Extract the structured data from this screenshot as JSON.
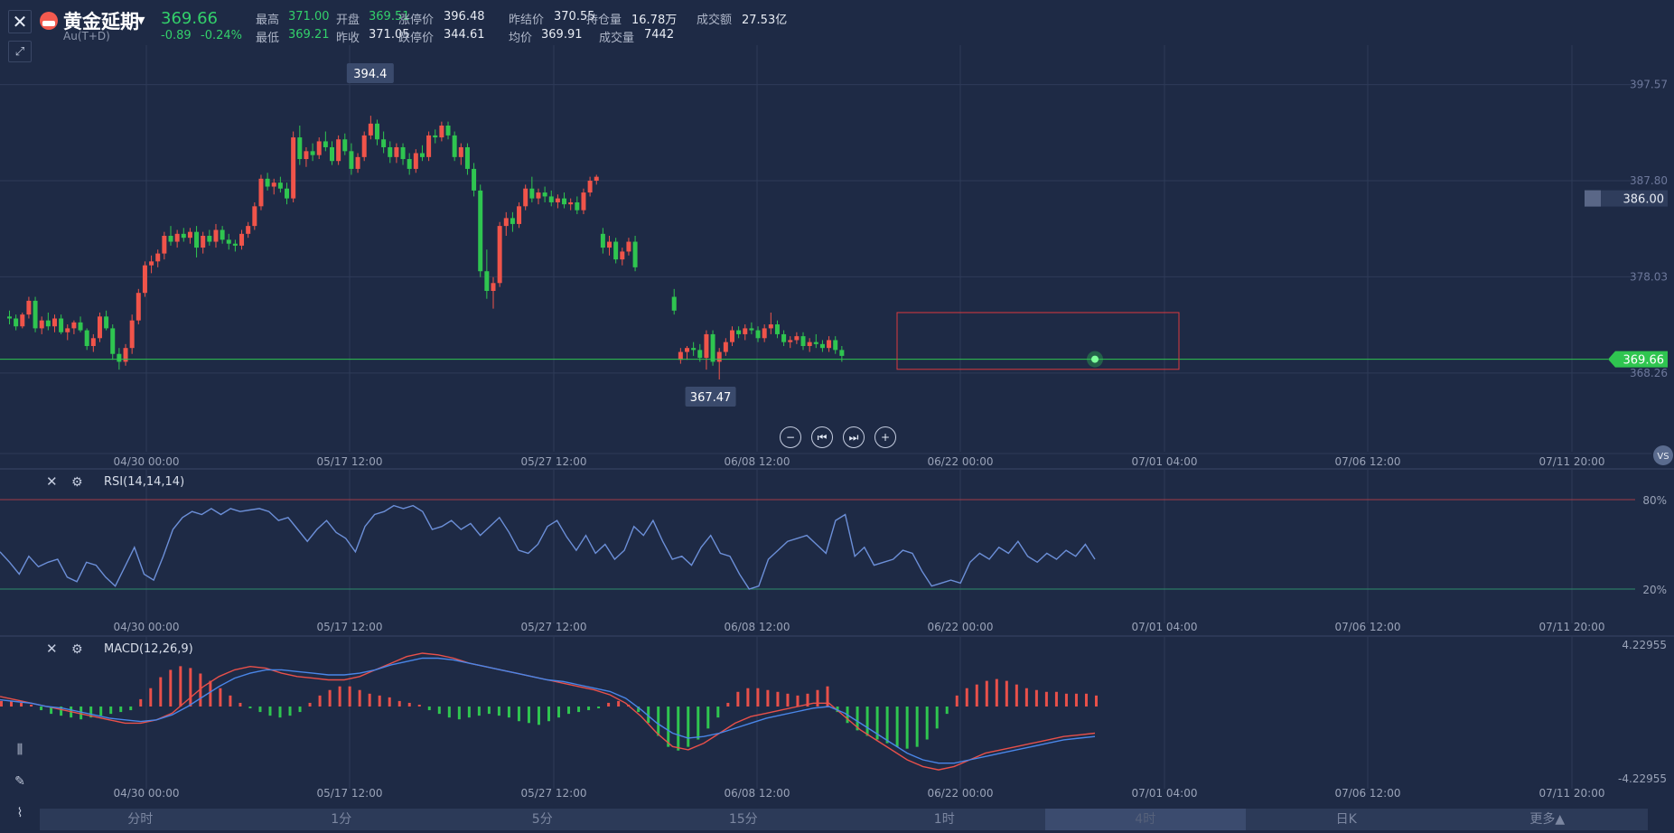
{
  "header": {
    "close_icon": "close-icon",
    "expand_icon": "expand-icon",
    "title": "黄金延期",
    "subtitle": "Au(T+D)",
    "price": "369.66",
    "change": "-0.89",
    "change_pct": "-0.24%",
    "quotes_row1": [
      {
        "label": "最高",
        "value": "371.00",
        "green": true
      },
      {
        "label": "开盘",
        "value": "369.51",
        "green": true
      },
      {
        "label": "涨停价",
        "value": "396.48",
        "green": false
      },
      {
        "label": "昨结价",
        "value": "370.55",
        "green": false
      },
      {
        "label": "持仓量",
        "value": "16.78万",
        "green": false
      },
      {
        "label": "成交额",
        "value": "27.53亿",
        "green": false
      }
    ],
    "quotes_row2": [
      {
        "label": "最低",
        "value": "369.21",
        "green": true
      },
      {
        "label": "昨收",
        "value": "371.05",
        "green": false
      },
      {
        "label": "跌停价",
        "value": "344.61",
        "green": false
      },
      {
        "label": "均价",
        "value": "369.91",
        "green": false
      },
      {
        "label": "成交量",
        "value": "7442",
        "green": false
      }
    ]
  },
  "main_chart": {
    "y_ticks": [
      "397.57",
      "387.80",
      "378.03",
      "368.26"
    ],
    "alert_price": "386.00",
    "last_price": "369.66",
    "high_label": "394.4",
    "low_label": "367.47",
    "x_ticks": [
      "04/30 00:00",
      "05/17 12:00",
      "05/27 12:00",
      "06/08 12:00",
      "06/22 00:00",
      "07/01 04:00",
      "07/06 12:00",
      "07/11 20:00"
    ],
    "vs_label": "VS",
    "colors": {
      "up": "#f0544a",
      "down": "#2fc550",
      "grid": "#2e3b58"
    }
  },
  "zoom_controls": [
    "zoom-out-icon",
    "skip-back-icon",
    "skip-forward-icon",
    "zoom-in-icon"
  ],
  "rsi": {
    "title": "RSI(14,14,14)",
    "levels": [
      "80%",
      "20%"
    ],
    "x_ticks": [
      "04/30 00:00",
      "05/17 12:00",
      "05/27 12:00",
      "06/08 12:00",
      "06/22 00:00",
      "07/01 04:00",
      "07/06 12:00",
      "07/11 20:00"
    ],
    "series": [
      45,
      38,
      30,
      42,
      35,
      38,
      40,
      28,
      25,
      38,
      36,
      28,
      22,
      35,
      48,
      30,
      26,
      42,
      60,
      68,
      72,
      70,
      74,
      70,
      74,
      72,
      73,
      74,
      72,
      66,
      68,
      60,
      52,
      60,
      66,
      58,
      54,
      45,
      62,
      70,
      72,
      76,
      74,
      76,
      72,
      60,
      62,
      66,
      60,
      64,
      56,
      62,
      68,
      58,
      46,
      44,
      50,
      62,
      66,
      55,
      46,
      56,
      44,
      50,
      40,
      46,
      62,
      56,
      66,
      52,
      40,
      42,
      36,
      48,
      56,
      44,
      42,
      30,
      20,
      22,
      40,
      46,
      52,
      54,
      56,
      50,
      44,
      66,
      70,
      42,
      48,
      36,
      38,
      40,
      46,
      44,
      32,
      22,
      24,
      26,
      24,
      38,
      44,
      40,
      48,
      44,
      52,
      42,
      38,
      44,
      40,
      46,
      42,
      50,
      40
    ]
  },
  "macd": {
    "title": "MACD(12,26,9)",
    "y_ticks": [
      "4.22955",
      "-4.22955"
    ],
    "x_ticks": [
      "04/30 00:00",
      "05/17 12:00",
      "05/27 12:00",
      "06/08 12:00",
      "06/22 00:00",
      "07/01 04:00",
      "07/06 12:00",
      "07/11 20:00"
    ],
    "hist": [
      0.3,
      0.3,
      0.2,
      0.1,
      -0.2,
      -0.4,
      -0.5,
      -0.6,
      -0.7,
      -0.6,
      -0.5,
      -0.4,
      -0.3,
      -0.2,
      0.4,
      1.0,
      1.6,
      2.0,
      2.2,
      2.1,
      1.8,
      1.4,
      1.0,
      0.6,
      0.2,
      -0.1,
      -0.3,
      -0.5,
      -0.6,
      -0.5,
      -0.3,
      0.2,
      0.6,
      0.9,
      1.1,
      1.1,
      0.9,
      0.7,
      0.6,
      0.5,
      0.3,
      0.2,
      0.1,
      -0.2,
      -0.4,
      -0.6,
      -0.7,
      -0.6,
      -0.5,
      -0.4,
      -0.5,
      -0.6,
      -0.8,
      -0.9,
      -1.0,
      -0.8,
      -0.6,
      -0.4,
      -0.3,
      -0.2,
      -0.1,
      0.2,
      0.3,
      0.1,
      -0.3,
      -0.9,
      -1.6,
      -2.2,
      -2.4,
      -2.2,
      -1.8,
      -1.2,
      -0.6,
      0.2,
      0.8,
      1.0,
      1.0,
      0.9,
      0.8,
      0.7,
      0.6,
      0.7,
      0.9,
      1.1,
      -0.3,
      -0.9,
      -1.3,
      -1.6,
      -1.8,
      -2.0,
      -2.2,
      -2.3,
      -2.2,
      -1.8,
      -1.2,
      -0.4,
      0.6,
      1.0,
      1.2,
      1.4,
      1.5,
      1.4,
      1.2,
      1.0,
      0.9,
      0.8,
      0.8,
      0.7,
      0.7,
      0.7,
      0.6
    ],
    "diff": [
      0.6,
      0.4,
      0.2,
      0.0,
      -0.2,
      -0.4,
      -0.6,
      -0.8,
      -1.0,
      -1.0,
      -0.8,
      -0.4,
      0.4,
      1.2,
      1.8,
      2.2,
      2.4,
      2.3,
      2.0,
      1.8,
      1.7,
      1.6,
      1.6,
      1.8,
      2.2,
      2.6,
      3.0,
      3.2,
      3.1,
      2.9,
      2.6,
      2.4,
      2.2,
      2.0,
      1.8,
      1.6,
      1.4,
      1.2,
      1.0,
      0.7,
      0.2,
      -0.6,
      -1.6,
      -2.4,
      -2.6,
      -2.2,
      -1.6,
      -1.0,
      -0.6,
      -0.4,
      -0.2,
      0.0,
      0.2,
      0.2,
      -0.6,
      -1.4,
      -2.0,
      -2.6,
      -3.2,
      -3.6,
      -3.8,
      -3.6,
      -3.2,
      -2.8,
      -2.6,
      -2.4,
      -2.2,
      -2.0,
      -1.8,
      -1.7,
      -1.6
    ],
    "dea": [
      0.4,
      0.3,
      0.2,
      0.0,
      -0.1,
      -0.3,
      -0.5,
      -0.7,
      -0.8,
      -0.9,
      -0.8,
      -0.5,
      0.0,
      0.6,
      1.2,
      1.7,
      2.0,
      2.2,
      2.2,
      2.1,
      2.0,
      1.9,
      1.9,
      2.0,
      2.2,
      2.5,
      2.7,
      2.9,
      2.9,
      2.8,
      2.6,
      2.4,
      2.2,
      2.0,
      1.8,
      1.6,
      1.5,
      1.3,
      1.1,
      0.9,
      0.5,
      -0.2,
      -1.0,
      -1.6,
      -1.9,
      -1.8,
      -1.6,
      -1.3,
      -1.0,
      -0.7,
      -0.5,
      -0.3,
      -0.1,
      0.0,
      -0.4,
      -1.0,
      -1.6,
      -2.2,
      -2.8,
      -3.2,
      -3.4,
      -3.4,
      -3.2,
      -3.0,
      -2.8,
      -2.6,
      -2.4,
      -2.2,
      -2.0,
      -1.9,
      -1.8
    ]
  },
  "left_tools": [
    "candlestick-icon",
    "draw-icon",
    "indicator-icon"
  ],
  "tabs": [
    "分时",
    "1分",
    "5分",
    "15分",
    "1时",
    "4时",
    "日K",
    "更多▲"
  ],
  "active_tab": "4时",
  "candles": [
    [
      374.0,
      374.6,
      373.2,
      373.8
    ],
    [
      373.8,
      374.2,
      372.6,
      373.0
    ],
    [
      373.0,
      374.4,
      372.8,
      374.2
    ],
    [
      374.2,
      376.0,
      373.8,
      375.6
    ],
    [
      375.6,
      376.0,
      372.4,
      372.8
    ],
    [
      372.8,
      374.0,
      372.2,
      373.6
    ],
    [
      373.6,
      374.4,
      372.6,
      373.0
    ],
    [
      373.0,
      374.2,
      372.4,
      373.8
    ],
    [
      373.8,
      374.2,
      372.2,
      372.4
    ],
    [
      372.4,
      373.2,
      371.6,
      372.8
    ],
    [
      372.8,
      373.6,
      372.2,
      373.4
    ],
    [
      373.4,
      374.0,
      372.4,
      372.6
    ],
    [
      372.6,
      372.8,
      370.6,
      371.0
    ],
    [
      371.0,
      372.2,
      370.4,
      371.8
    ],
    [
      371.8,
      374.4,
      371.4,
      374.0
    ],
    [
      374.0,
      374.6,
      372.6,
      372.8
    ],
    [
      372.8,
      373.2,
      369.6,
      370.2
    ],
    [
      370.2,
      370.8,
      368.6,
      369.4
    ],
    [
      369.4,
      371.2,
      369.0,
      370.8
    ],
    [
      370.8,
      374.2,
      370.2,
      373.6
    ],
    [
      373.6,
      376.8,
      373.2,
      376.4
    ],
    [
      376.4,
      379.6,
      376.0,
      379.2
    ],
    [
      379.2,
      380.2,
      378.4,
      379.6
    ],
    [
      379.6,
      380.8,
      379.0,
      380.4
    ],
    [
      380.4,
      382.6,
      379.8,
      382.2
    ],
    [
      382.2,
      383.2,
      381.2,
      381.6
    ],
    [
      381.6,
      382.8,
      381.0,
      382.4
    ],
    [
      382.4,
      383.0,
      381.6,
      382.0
    ],
    [
      382.0,
      383.0,
      381.4,
      382.6
    ],
    [
      382.6,
      383.2,
      380.0,
      381.0
    ],
    [
      381.0,
      382.6,
      380.4,
      382.2
    ],
    [
      382.2,
      382.8,
      381.2,
      381.6
    ],
    [
      381.6,
      383.4,
      381.0,
      382.8
    ],
    [
      382.8,
      383.2,
      381.4,
      381.8
    ],
    [
      381.8,
      382.4,
      380.8,
      381.4
    ],
    [
      381.4,
      381.8,
      380.6,
      381.2
    ],
    [
      381.2,
      382.8,
      380.8,
      382.4
    ],
    [
      382.4,
      383.6,
      382.0,
      383.2
    ],
    [
      383.2,
      385.6,
      382.8,
      385.2
    ],
    [
      385.2,
      388.4,
      384.8,
      388.0
    ],
    [
      388.0,
      388.6,
      386.8,
      387.2
    ],
    [
      387.2,
      388.0,
      386.4,
      387.6
    ],
    [
      387.6,
      388.2,
      386.6,
      387.0
    ],
    [
      387.0,
      387.6,
      385.4,
      386.0
    ],
    [
      386.0,
      392.8,
      385.6,
      392.2
    ],
    [
      392.2,
      393.4,
      389.4,
      390.0
    ],
    [
      390.0,
      391.2,
      389.2,
      390.8
    ],
    [
      390.8,
      391.6,
      389.8,
      390.4
    ],
    [
      390.4,
      392.2,
      390.0,
      391.8
    ],
    [
      391.8,
      392.8,
      390.8,
      391.2
    ],
    [
      391.2,
      391.8,
      389.4,
      389.8
    ],
    [
      389.8,
      392.4,
      389.4,
      392.0
    ],
    [
      392.0,
      392.6,
      390.4,
      390.8
    ],
    [
      390.8,
      391.6,
      388.4,
      389.0
    ],
    [
      389.0,
      390.6,
      388.6,
      390.2
    ],
    [
      390.2,
      392.8,
      389.8,
      392.4
    ],
    [
      392.4,
      394.4,
      392.0,
      393.6
    ],
    [
      393.6,
      394.0,
      391.4,
      392.0
    ],
    [
      392.0,
      392.8,
      390.6,
      391.2
    ],
    [
      391.2,
      391.8,
      389.6,
      390.2
    ],
    [
      390.2,
      391.6,
      389.6,
      391.2
    ],
    [
      391.2,
      391.6,
      389.4,
      390.0
    ],
    [
      390.0,
      390.6,
      388.4,
      389.0
    ],
    [
      389.0,
      391.0,
      388.6,
      390.6
    ],
    [
      390.6,
      391.4,
      389.8,
      390.2
    ],
    [
      390.2,
      392.8,
      389.8,
      392.4
    ],
    [
      392.4,
      393.0,
      391.6,
      392.2
    ],
    [
      392.2,
      393.8,
      391.8,
      393.4
    ],
    [
      393.4,
      393.8,
      392.0,
      392.4
    ],
    [
      392.4,
      392.8,
      389.8,
      390.2
    ],
    [
      390.2,
      391.6,
      389.4,
      391.2
    ],
    [
      391.2,
      391.6,
      388.4,
      389.0
    ],
    [
      389.0,
      389.6,
      386.2,
      386.8
    ],
    [
      386.8,
      387.4,
      378.0,
      378.6
    ],
    [
      378.6,
      380.8,
      375.8,
      376.6
    ],
    [
      376.6,
      378.0,
      374.8,
      377.4
    ],
    [
      377.4,
      383.6,
      377.0,
      383.2
    ],
    [
      383.2,
      384.6,
      382.2,
      384.0
    ],
    [
      384.0,
      384.6,
      382.6,
      383.4
    ],
    [
      383.4,
      385.6,
      383.0,
      385.2
    ],
    [
      385.2,
      387.4,
      384.8,
      387.0
    ],
    [
      387.0,
      388.2,
      385.6,
      386.0
    ],
    [
      386.0,
      387.0,
      385.4,
      386.6
    ],
    [
      386.6,
      387.2,
      385.6,
      386.2
    ],
    [
      386.2,
      386.8,
      385.2,
      385.6
    ],
    [
      385.6,
      386.4,
      385.0,
      386.0
    ],
    [
      386.0,
      386.6,
      385.0,
      385.4
    ],
    [
      385.4,
      386.0,
      384.8,
      385.6
    ],
    [
      385.6,
      386.2,
      384.4,
      384.8
    ],
    [
      384.8,
      387.0,
      384.4,
      386.6
    ],
    [
      386.6,
      388.2,
      386.2,
      387.8
    ],
    [
      387.8,
      388.4,
      387.4,
      388.2
    ],
    [
      382.4,
      383.0,
      380.4,
      381.0
    ],
    [
      381.0,
      382.2,
      380.2,
      381.6
    ],
    [
      381.6,
      382.0,
      379.4,
      379.8
    ],
    [
      379.8,
      381.0,
      379.2,
      380.6
    ],
    [
      380.6,
      382.0,
      380.2,
      381.6
    ],
    [
      381.6,
      382.2,
      378.6,
      379.0
    ],
    [
      376.0,
      376.8,
      374.2,
      374.6
    ],
    [
      369.6,
      370.8,
      369.2,
      370.4
    ],
    [
      370.4,
      371.0,
      369.6,
      370.8
    ],
    [
      370.8,
      371.4,
      370.0,
      370.6
    ],
    [
      370.6,
      371.2,
      369.4,
      369.8
    ],
    [
      369.8,
      372.6,
      368.6,
      372.2
    ],
    [
      372.2,
      372.6,
      369.0,
      369.4
    ],
    [
      369.4,
      370.8,
      367.6,
      370.4
    ],
    [
      370.4,
      371.8,
      370.0,
      371.4
    ],
    [
      371.4,
      373.0,
      371.0,
      372.6
    ],
    [
      372.6,
      373.0,
      371.8,
      372.2
    ],
    [
      372.2,
      373.2,
      371.6,
      372.8
    ],
    [
      372.8,
      373.4,
      372.2,
      372.6
    ],
    [
      372.6,
      373.0,
      371.4,
      371.8
    ],
    [
      371.8,
      373.2,
      371.4,
      372.8
    ],
    [
      372.8,
      374.4,
      372.2,
      373.2
    ],
    [
      373.2,
      373.6,
      371.8,
      372.2
    ],
    [
      372.2,
      372.6,
      371.0,
      371.4
    ],
    [
      371.4,
      372.0,
      370.8,
      371.6
    ],
    [
      371.6,
      372.4,
      371.2,
      372.0
    ],
    [
      372.0,
      372.4,
      370.6,
      371.0
    ],
    [
      371.0,
      371.8,
      370.4,
      371.4
    ],
    [
      371.4,
      372.2,
      370.8,
      371.2
    ],
    [
      371.2,
      371.6,
      370.4,
      370.8
    ],
    [
      370.8,
      372.0,
      370.4,
      371.6
    ],
    [
      371.6,
      372.0,
      370.2,
      370.6
    ],
    [
      370.6,
      371.0,
      369.4,
      370.0
    ]
  ]
}
